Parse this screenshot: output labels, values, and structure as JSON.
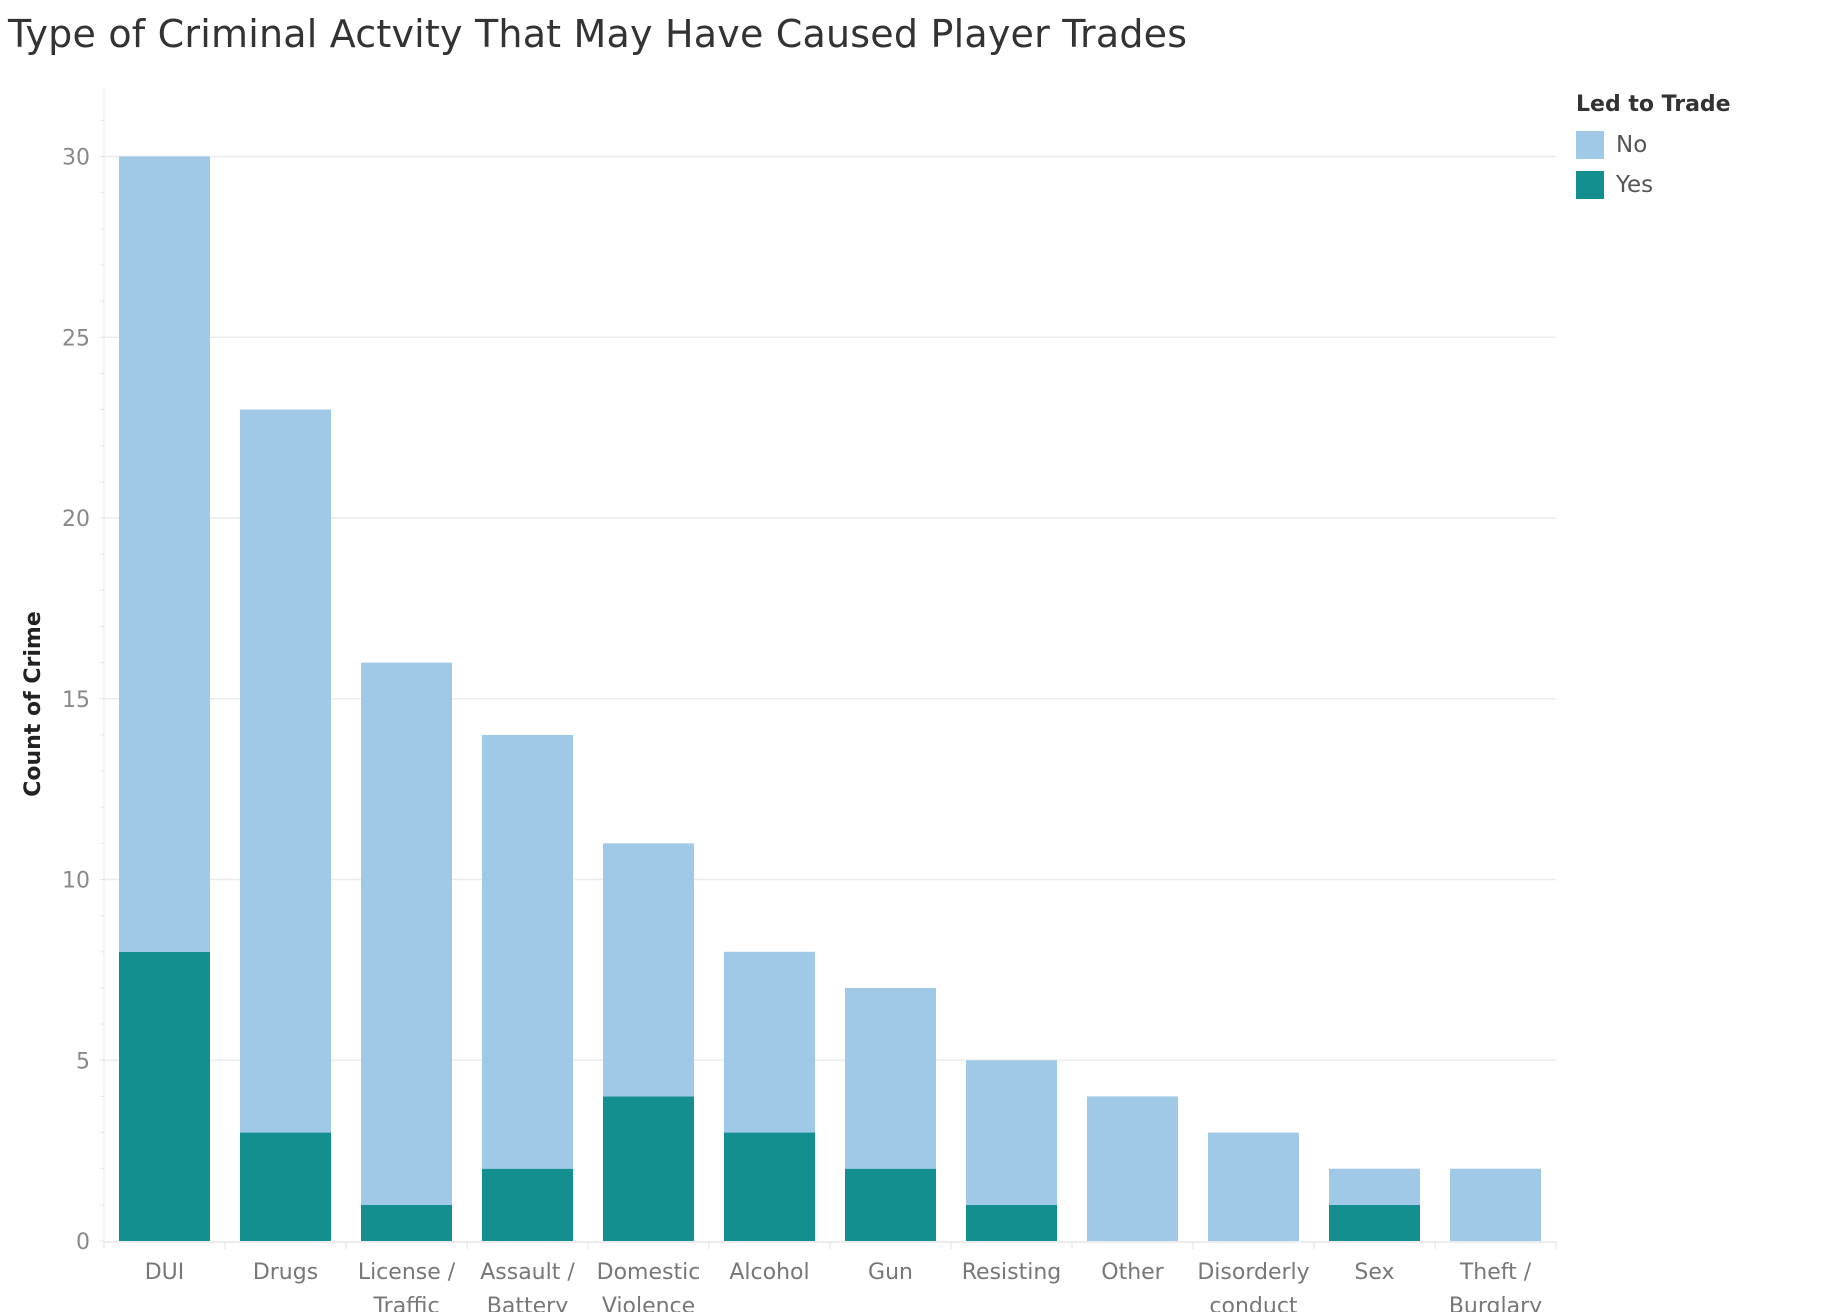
{
  "chart_data": {
    "type": "bar",
    "stacked": true,
    "title": "Type of Criminal Actvity That May Have Caused Player Trades",
    "xlabel": "",
    "ylabel": "Count of Crime",
    "ylim": [
      0,
      32
    ],
    "yticks": [
      0,
      5,
      10,
      15,
      20,
      25,
      30
    ],
    "grid": true,
    "legend_position": "top-right",
    "legend_title": "Led to Trade",
    "categories": [
      [
        "DUI"
      ],
      [
        "Drugs"
      ],
      [
        "License /",
        "Traffic"
      ],
      [
        "Assault /",
        "Battery"
      ],
      [
        "Domestic",
        "Violence"
      ],
      [
        "Alcohol"
      ],
      [
        "Gun"
      ],
      [
        "Resisting"
      ],
      [
        "Other"
      ],
      [
        "Disorderly",
        "conduct"
      ],
      [
        "Sex"
      ],
      [
        "Theft /",
        "Burglary"
      ]
    ],
    "series": [
      {
        "name": "Yes",
        "color": "#148F8F",
        "values": [
          8,
          3,
          1,
          2,
          4,
          3,
          2,
          1,
          0,
          0,
          1,
          0
        ]
      },
      {
        "name": "No",
        "color": "#A0C9E7",
        "values": [
          22,
          20,
          15,
          12,
          7,
          5,
          5,
          4,
          4,
          3,
          1,
          2
        ]
      }
    ],
    "legend_order": [
      "No",
      "Yes"
    ]
  }
}
